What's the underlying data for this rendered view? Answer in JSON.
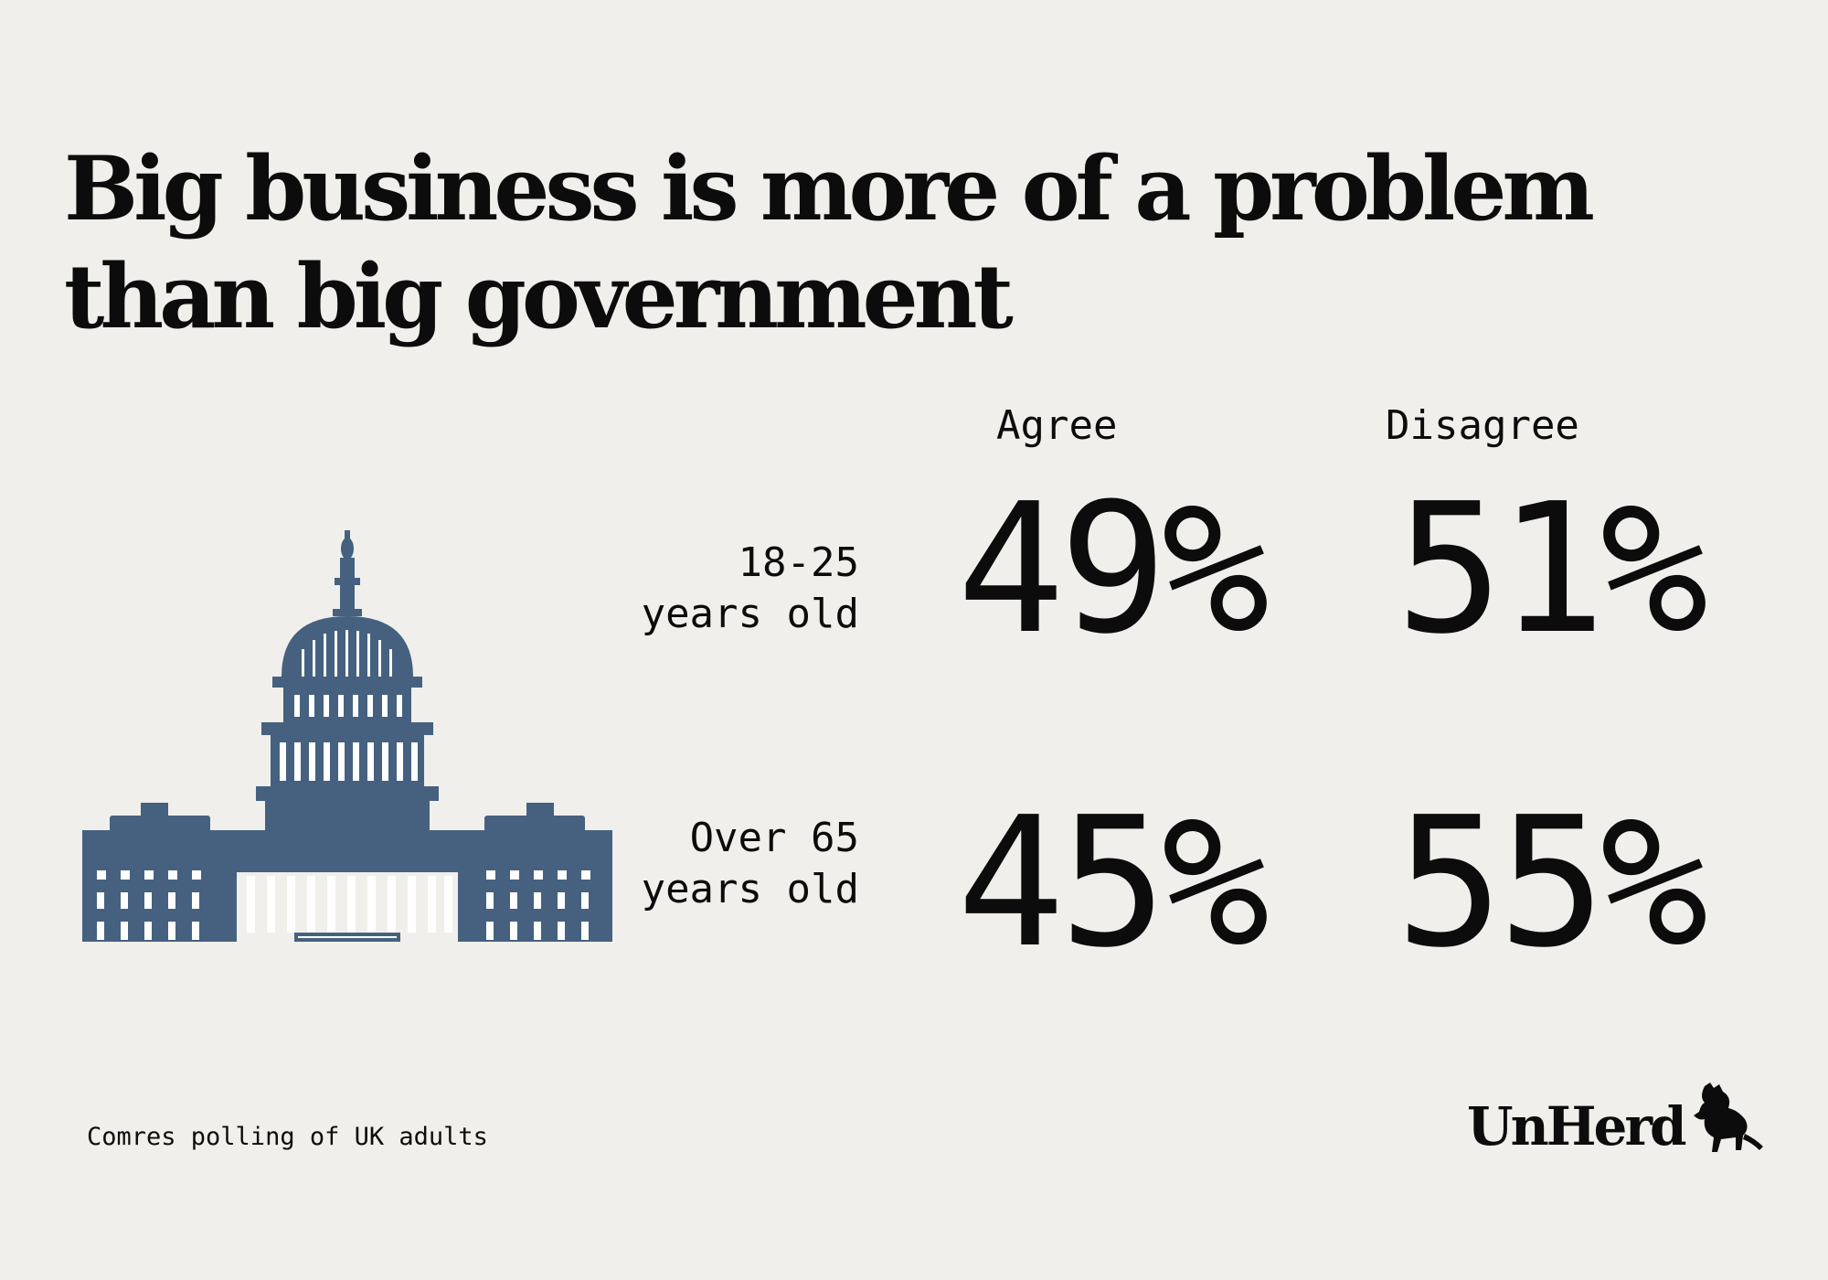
{
  "title": {
    "line1": "Big business is more of a problem",
    "line2": "than big government"
  },
  "chart_data": {
    "type": "table",
    "title": "Big business is more of a problem than big government",
    "columns": [
      "Agree",
      "Disagree"
    ],
    "rows": [
      {
        "label_line1": "18-25",
        "label_line2": "years old",
        "values": [
          49,
          51
        ],
        "display": [
          "49%",
          "51%"
        ]
      },
      {
        "label_line1": "Over 65",
        "label_line2": "years old",
        "values": [
          45,
          55
        ],
        "display": [
          "45%",
          "55%"
        ]
      }
    ],
    "unit": "%"
  },
  "source": "Comres polling of UK adults",
  "logo": {
    "text": "UnHerd"
  },
  "illustration": {
    "icon": "capitol-building-icon",
    "color": "#45617f"
  }
}
